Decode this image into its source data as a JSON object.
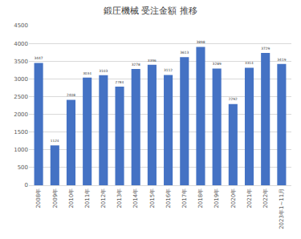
{
  "chart_data": {
    "type": "bar",
    "title": "鍛圧機械 受注金額 推移",
    "categories": [
      "2008年",
      "2009年",
      "2010年",
      "2011年",
      "2012年",
      "2013年",
      "2014年",
      "2015年",
      "2016年",
      "2017年",
      "2018年",
      "2019年",
      "2020年",
      "2021年",
      "2022年",
      "2023年1~11月"
    ],
    "values": [
      3447,
      1124,
      2408,
      3034,
      3103,
      2784,
      3278,
      3396,
      3112,
      3613,
      3898,
      3289,
      2292,
      3314,
      3729,
      3419
    ],
    "color": "#4472c4",
    "ylim": [
      0,
      4500
    ],
    "yticks": [
      0,
      500,
      1000,
      1500,
      2000,
      2500,
      3000,
      3500,
      4000,
      4500
    ],
    "grid": true,
    "data_labels": true
  }
}
